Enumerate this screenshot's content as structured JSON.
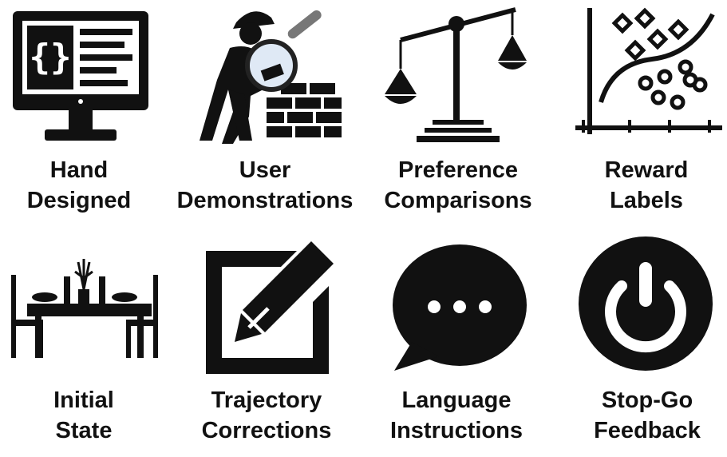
{
  "items": [
    {
      "line1": "Hand",
      "line2": "Designed",
      "icon": "code-monitor-icon"
    },
    {
      "line1": "User",
      "line2": "Demonstrations",
      "icon": "worker-inspecting-bricks-icon"
    },
    {
      "line1": "Preference",
      "line2": "Comparisons",
      "icon": "balance-scale-icon"
    },
    {
      "line1": "Reward",
      "line2": "Labels",
      "icon": "scatter-classifier-icon"
    },
    {
      "line1": "Initial",
      "line2": "State",
      "icon": "dining-table-icon"
    },
    {
      "line1": "Trajectory",
      "line2": "Corrections",
      "icon": "edit-square-icon"
    },
    {
      "line1": "Language",
      "line2": "Instructions",
      "icon": "speech-bubble-icon"
    },
    {
      "line1": "Stop-Go",
      "line2": "Feedback",
      "icon": "power-button-icon"
    }
  ],
  "colors": {
    "icon": "#111111",
    "text": "#111111",
    "background": "#ffffff"
  }
}
